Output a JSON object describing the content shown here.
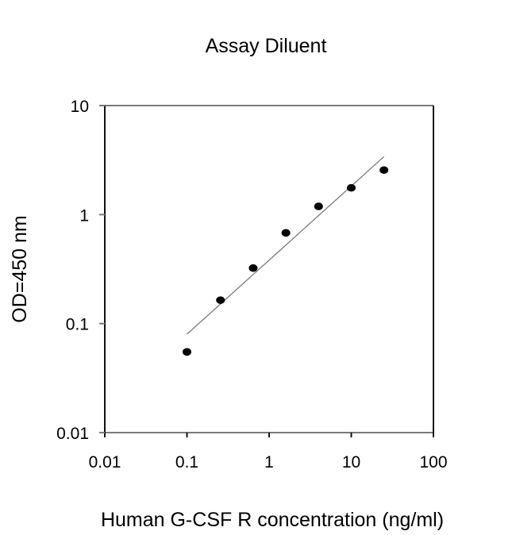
{
  "chart_data": {
    "type": "scatter",
    "title": "Assay Diluent",
    "xlabel": "Human G-CSF R concentration (ng/ml)",
    "ylabel": "OD=450 nm",
    "xscale": "log",
    "yscale": "log",
    "xlim": [
      0.01,
      100
    ],
    "ylim": [
      0.01,
      10
    ],
    "xticks": [
      0.01,
      0.1,
      1,
      10,
      100
    ],
    "xtick_labels": [
      "0.01",
      "0.1",
      "1",
      "10",
      "100"
    ],
    "yticks": [
      0.01,
      0.1,
      1,
      10
    ],
    "ytick_labels": [
      "0.01",
      "0.1",
      "1",
      "10"
    ],
    "grid": false,
    "legend": null,
    "series": [
      {
        "name": "Assay Diluent",
        "kind": "points",
        "x": [
          0.1,
          0.256,
          0.64,
          1.6,
          4,
          10,
          25
        ],
        "y": [
          0.055,
          0.164,
          0.323,
          0.68,
          1.19,
          1.76,
          2.56
        ]
      },
      {
        "name": "Fit line",
        "kind": "line",
        "x": [
          0.1,
          25
        ],
        "y": [
          0.08,
          3.4
        ]
      }
    ]
  },
  "colors": {
    "points": "#000000",
    "fit_line": "#7a7a7a",
    "frame_vertical": "#111111",
    "frame_horizontal": "#7a7a7a"
  }
}
